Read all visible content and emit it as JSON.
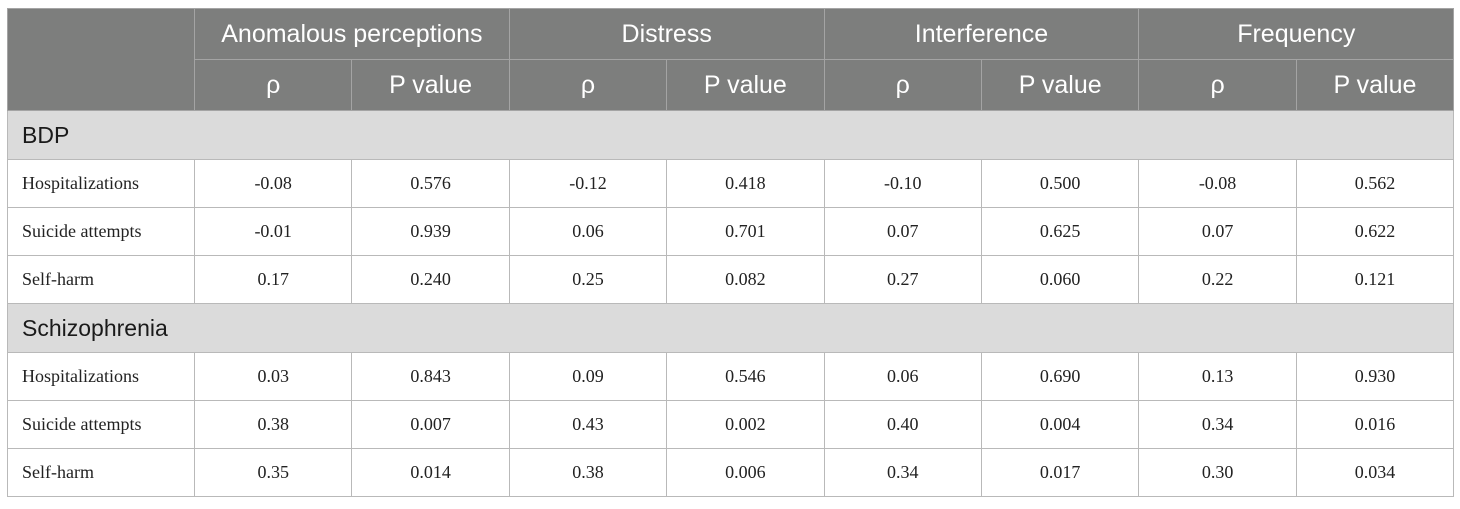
{
  "table": {
    "header": {
      "corner": "",
      "groups": [
        "Anomalous perceptions",
        "Distress",
        "Interference",
        "Frequency"
      ],
      "rho_label": "ρ",
      "p_label": "P value"
    },
    "sections": [
      {
        "title": "BDP",
        "rows": [
          {
            "label": "Hospitalizations",
            "values": [
              "-0.08",
              "0.576",
              "-0.12",
              "0.418",
              "-0.10",
              "0.500",
              "-0.08",
              "0.562"
            ]
          },
          {
            "label": "Suicide attempts",
            "values": [
              "-0.01",
              "0.939",
              "0.06",
              "0.701",
              "0.07",
              "0.625",
              "0.07",
              "0.622"
            ]
          },
          {
            "label": "Self-harm",
            "values": [
              "0.17",
              "0.240",
              "0.25",
              "0.082",
              "0.27",
              "0.060",
              "0.22",
              "0.121"
            ]
          }
        ]
      },
      {
        "title": "Schizophrenia",
        "rows": [
          {
            "label": "Hospitalizations",
            "values": [
              "0.03",
              "0.843",
              "0.09",
              "0.546",
              "0.06",
              "0.690",
              "0.13",
              "0.930"
            ]
          },
          {
            "label": "Suicide attempts",
            "values": [
              "0.38",
              "0.007",
              "0.43",
              "0.002",
              "0.40",
              "0.004",
              "0.34",
              "0.016"
            ]
          },
          {
            "label": "Self-harm",
            "values": [
              "0.35",
              "0.014",
              "0.38",
              "0.006",
              "0.34",
              "0.017",
              "0.30",
              "0.034"
            ]
          }
        ]
      }
    ]
  }
}
